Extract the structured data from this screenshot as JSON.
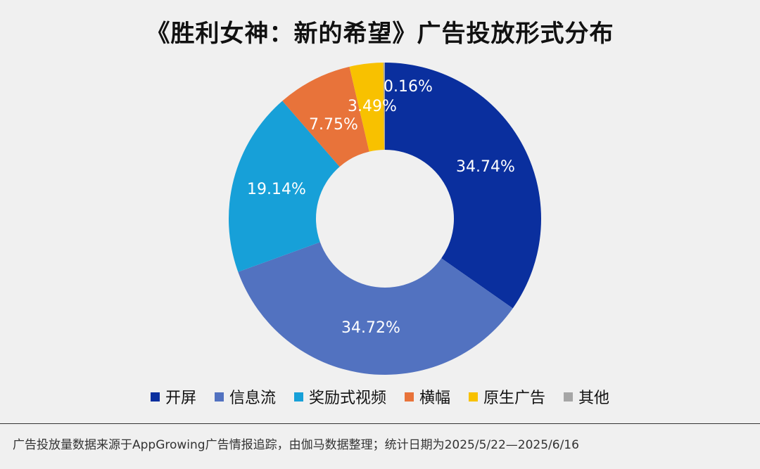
{
  "chart_data": {
    "type": "pie",
    "title": "《胜利女神：新的希望》广告投放形式分布",
    "categories": [
      "开屏",
      "信息流",
      "奖励式视频",
      "横幅",
      "原生广告",
      "其他"
    ],
    "values": [
      34.74,
      34.72,
      19.14,
      7.75,
      3.49,
      0.16
    ],
    "labels": [
      "34.74%",
      "34.72%",
      "19.14%",
      "7.75%",
      "3.49%",
      "0.16%"
    ],
    "colors": [
      "#0a2f9e",
      "#5272c0",
      "#17a0d8",
      "#e8733a",
      "#f8c100",
      "#a6a6a6"
    ],
    "legend_position": "bottom"
  },
  "footer": {
    "note": "广告投放量数据来源于AppGrowing广告情报追踪，由伽马数据整理；统计日期为2025/5/22—2025/6/16"
  }
}
